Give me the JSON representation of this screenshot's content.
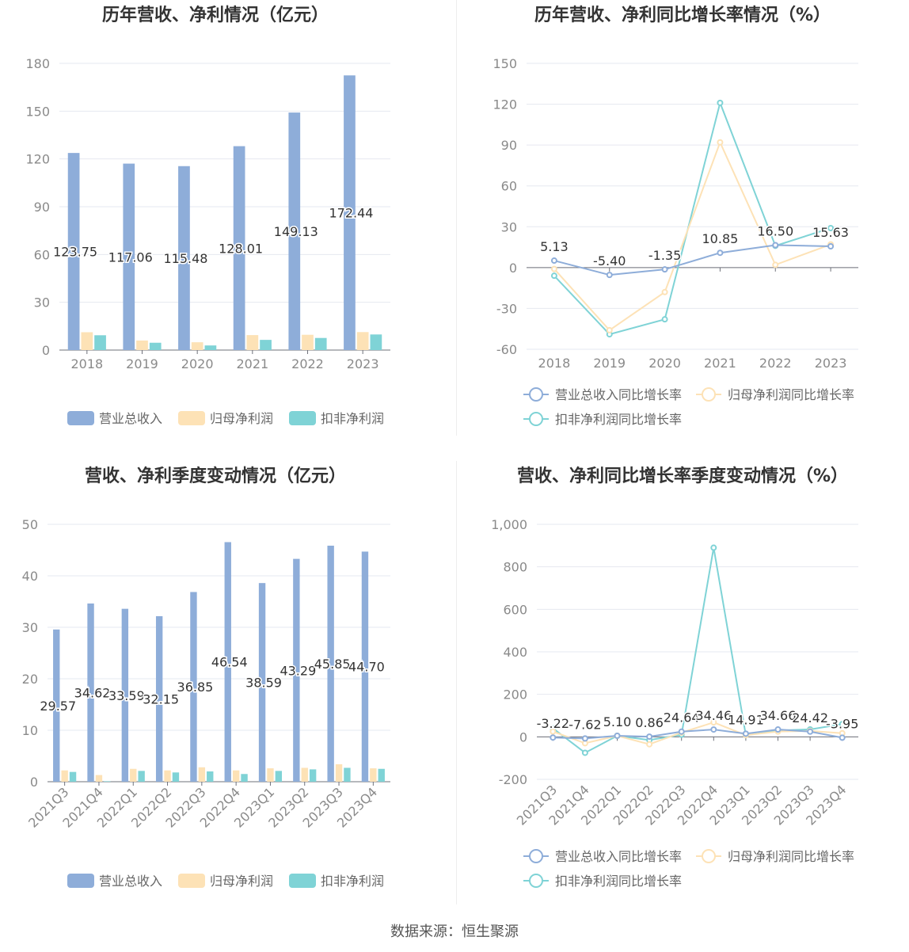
{
  "source_text": "数据来源：恒生聚源",
  "colors": {
    "revenue": "#8eadd9",
    "parent_profit": "#fde2b6",
    "deducted_profit": "#7fd3d6",
    "grid": "#e6e8f0",
    "axis": "#6e7079"
  },
  "chart_data": [
    {
      "type": "bar",
      "title": "历年营收、净利情况（亿元）",
      "categories": [
        "2018",
        "2019",
        "2020",
        "2021",
        "2022",
        "2023"
      ],
      "ylim": [
        0,
        180
      ],
      "yticks": [
        "0",
        "30",
        "60",
        "90",
        "120",
        "150",
        "180"
      ],
      "series": [
        {
          "name": "营业总收入",
          "values": [
            123.75,
            117.06,
            115.48,
            128.01,
            149.13,
            172.44
          ],
          "labels": [
            "123.75",
            "117.06",
            "115.48",
            "128.01",
            "149.13",
            "172.44"
          ]
        },
        {
          "name": "归母净利润",
          "values": [
            11.2,
            6.0,
            4.9,
            9.4,
            9.6,
            11.3
          ]
        },
        {
          "name": "扣非净利润",
          "values": [
            9.3,
            4.6,
            2.9,
            6.4,
            7.6,
            9.8
          ]
        }
      ],
      "legend": "bottom"
    },
    {
      "type": "line",
      "title": "历年营收、净利同比增长率情况（%）",
      "categories": [
        "2018",
        "2019",
        "2020",
        "2021",
        "2022",
        "2023"
      ],
      "ylim": [
        -60,
        150
      ],
      "yticks": [
        "-60",
        "-30",
        "0",
        "30",
        "60",
        "90",
        "120",
        "150"
      ],
      "series": [
        {
          "name": "营业总收入同比增长率",
          "values": [
            5.13,
            -5.4,
            -1.35,
            10.85,
            16.5,
            15.63
          ],
          "labels": [
            "5.13",
            "-5.40",
            "-1.35",
            "10.85",
            "16.50",
            "15.63"
          ]
        },
        {
          "name": "归母净利润同比增长率",
          "values": [
            -1,
            -46,
            -18,
            92,
            2,
            17
          ]
        },
        {
          "name": "扣非净利润同比增长率",
          "values": [
            -6,
            -49,
            -38,
            121,
            16,
            29
          ]
        }
      ],
      "legend": "bottom"
    },
    {
      "type": "bar",
      "title": "营收、净利季度变动情况（亿元）",
      "categories": [
        "2021Q3",
        "2021Q4",
        "2022Q1",
        "2022Q2",
        "2022Q3",
        "2022Q4",
        "2023Q1",
        "2023Q2",
        "2023Q3",
        "2023Q4"
      ],
      "ylim": [
        0,
        50
      ],
      "yticks": [
        "0",
        "10",
        "20",
        "30",
        "40",
        "50"
      ],
      "series": [
        {
          "name": "营业总收入",
          "values": [
            29.57,
            34.62,
            33.59,
            32.15,
            36.85,
            46.54,
            38.59,
            43.29,
            45.85,
            44.7
          ],
          "labels": [
            "29.57",
            "34.62",
            "33.59",
            "32.15",
            "36.85",
            "46.54",
            "38.59",
            "43.29",
            "45.85",
            "44.70"
          ]
        },
        {
          "name": "归母净利润",
          "values": [
            2.2,
            1.3,
            2.5,
            2.2,
            2.8,
            2.2,
            2.6,
            2.7,
            3.4,
            2.6
          ]
        },
        {
          "name": "扣非净利润",
          "values": [
            1.9,
            0.1,
            2.1,
            1.8,
            2.0,
            1.5,
            2.1,
            2.4,
            2.7,
            2.5
          ]
        }
      ],
      "legend": "bottom"
    },
    {
      "type": "line",
      "title": "营收、净利同比增长率季度变动情况（%）",
      "categories": [
        "2021Q3",
        "2021Q4",
        "2022Q1",
        "2022Q2",
        "2022Q3",
        "2022Q4",
        "2023Q1",
        "2023Q2",
        "2023Q3",
        "2023Q4"
      ],
      "ylim": [
        -200,
        1000
      ],
      "yticks": [
        "-200",
        "0",
        "200",
        "400",
        "600",
        "800",
        "1,000"
      ],
      "series": [
        {
          "name": "营业总收入同比增长率",
          "values": [
            -3.22,
            -7.62,
            5.1,
            0.86,
            24.64,
            34.46,
            14.91,
            34.66,
            24.42,
            -3.95
          ],
          "labels": [
            "-3.22",
            "-7.62",
            "5.10",
            "0.86",
            "24.64",
            "34.46",
            "14.91",
            "34.66",
            "24.42",
            "-3.95"
          ]
        },
        {
          "name": "归母净利润同比增长率",
          "values": [
            25,
            -30,
            5,
            -35,
            20,
            68,
            8,
            25,
            28,
            17
          ]
        },
        {
          "name": "扣非净利润同比增长率",
          "values": [
            40,
            -75,
            5,
            -15,
            10,
            890,
            8,
            30,
            35,
            60
          ]
        }
      ],
      "legend": "bottom"
    }
  ]
}
